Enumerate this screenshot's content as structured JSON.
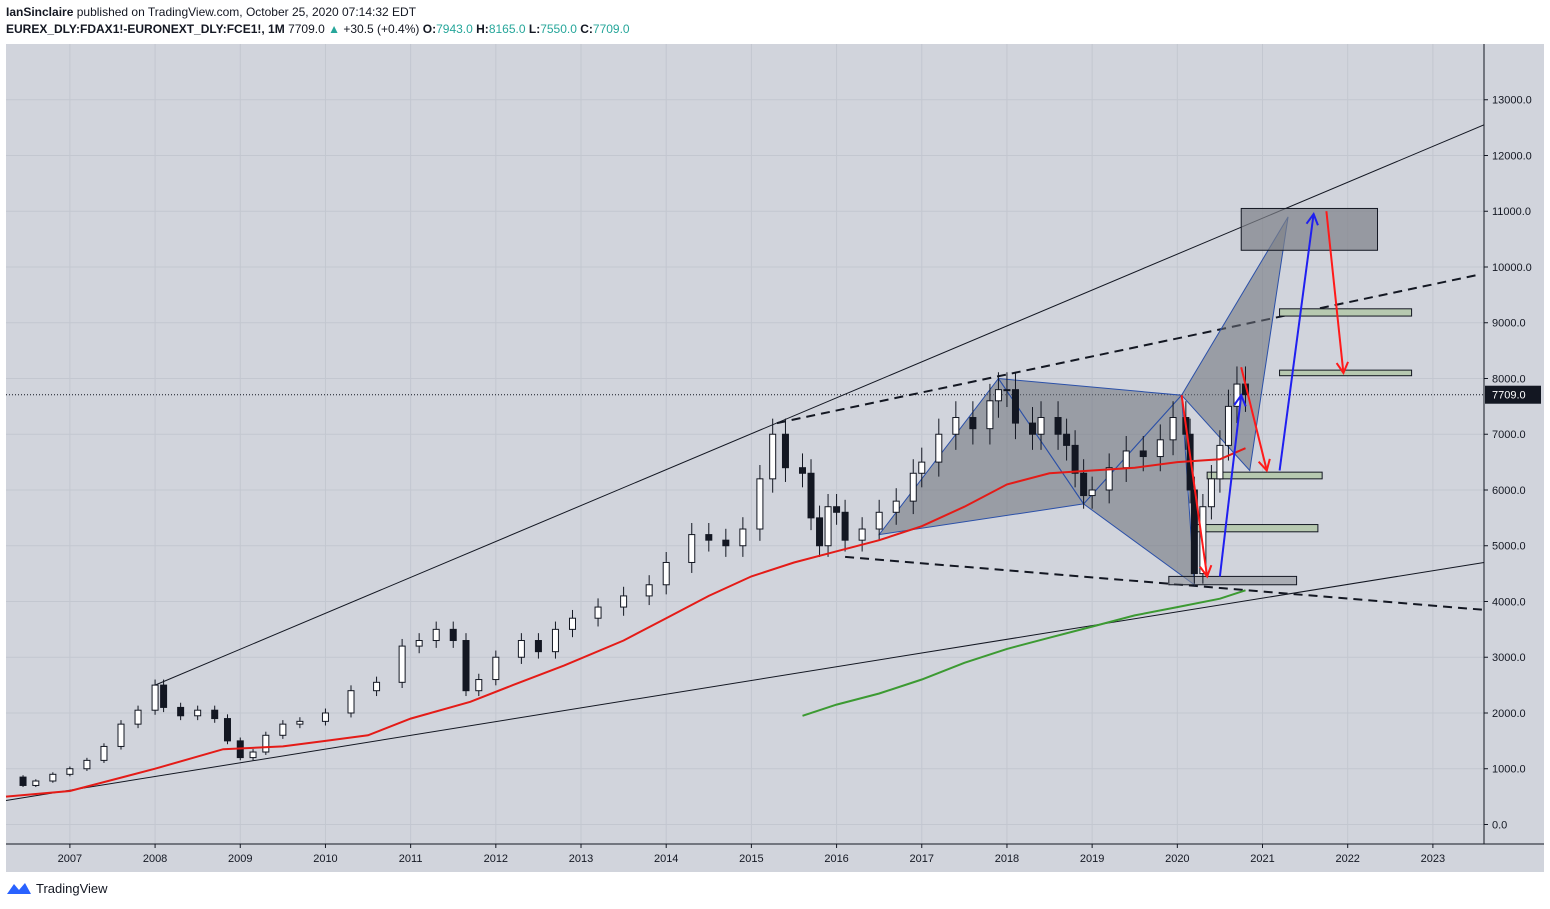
{
  "header": {
    "author": "IanSinclaire",
    "published_text": "published on TradingView.com, October 25, 2020 07:14:32 EDT",
    "symbol": "EUREX_DLY:FDAX1!-EURONEXT_DLY:FCE1!, 1M",
    "last": "7709.0",
    "change_arrow": "▲",
    "change": "+30.5 (+0.4%)",
    "o_label": "O:",
    "o_value": "7943.0",
    "h_label": "H:",
    "h_value": "8165.0",
    "l_label": "L:",
    "l_value": "7550.0",
    "c_label": "C:",
    "c_value": "7709.0"
  },
  "footer": {
    "brand": "TradingView",
    "icon": "tradingview-logo-icon"
  },
  "colors": {
    "background": "#d1d4dc",
    "up": "#ffffff",
    "down": "#131722",
    "ma_red": "#e41b17",
    "ma_green": "#3c9a32",
    "arrow_blue": "#1f1ff0",
    "arrow_red": "#ff1a1a",
    "pattern_fill": "#6b6f78",
    "zone_green": "#b7c9b0"
  },
  "chart_data": {
    "type": "candlestick",
    "interval": "1M",
    "ylim": [
      -350,
      14000
    ],
    "yticks": [
      0,
      1000,
      2000,
      3000,
      4000,
      5000,
      6000,
      7000,
      8000,
      9000,
      10000,
      11000,
      12000,
      13000
    ],
    "ytick_labels": [
      "0.0",
      "1000.0",
      "2000.0",
      "3000.0",
      "4000.0",
      "5000.0",
      "6000.0",
      "7000.0",
      "8000.0",
      "9000.0",
      "10000.0",
      "11000.0",
      "12000.0",
      "13000.0"
    ],
    "xlim": [
      2006.25,
      2023.6
    ],
    "xticks": [
      2007,
      2008,
      2009,
      2010,
      2011,
      2012,
      2013,
      2014,
      2015,
      2016,
      2017,
      2018,
      2019,
      2020,
      2021,
      2022,
      2023
    ],
    "xtick_labels": [
      "2007",
      "2008",
      "2009",
      "2010",
      "2011",
      "2012",
      "2013",
      "2014",
      "2015",
      "2016",
      "2017",
      "2018",
      "2019",
      "2020",
      "2021",
      "2022",
      "2023"
    ],
    "last_price": 7709.0,
    "last_price_label": "7709.0",
    "closes": [
      [
        2006.25,
        850
      ],
      [
        2006.45,
        700
      ],
      [
        2006.6,
        780
      ],
      [
        2006.8,
        900
      ],
      [
        2007.0,
        1000
      ],
      [
        2007.2,
        1150
      ],
      [
        2007.4,
        1400
      ],
      [
        2007.6,
        1800
      ],
      [
        2007.8,
        2050
      ],
      [
        2008.0,
        2500
      ],
      [
        2008.1,
        2100
      ],
      [
        2008.3,
        1950
      ],
      [
        2008.5,
        2050
      ],
      [
        2008.7,
        1900
      ],
      [
        2008.85,
        1500
      ],
      [
        2009.0,
        1200
      ],
      [
        2009.15,
        1300
      ],
      [
        2009.3,
        1600
      ],
      [
        2009.5,
        1800
      ],
      [
        2009.7,
        1850
      ],
      [
        2010.0,
        2000
      ],
      [
        2010.3,
        2400
      ],
      [
        2010.6,
        2550
      ],
      [
        2010.9,
        3200
      ],
      [
        2011.1,
        3300
      ],
      [
        2011.3,
        3500
      ],
      [
        2011.5,
        3300
      ],
      [
        2011.65,
        2400
      ],
      [
        2011.8,
        2600
      ],
      [
        2012.0,
        3000
      ],
      [
        2012.3,
        3300
      ],
      [
        2012.5,
        3100
      ],
      [
        2012.7,
        3500
      ],
      [
        2012.9,
        3700
      ],
      [
        2013.2,
        3900
      ],
      [
        2013.5,
        4100
      ],
      [
        2013.8,
        4300
      ],
      [
        2014.0,
        4700
      ],
      [
        2014.3,
        5200
      ],
      [
        2014.5,
        5100
      ],
      [
        2014.7,
        5000
      ],
      [
        2014.9,
        5300
      ],
      [
        2015.1,
        6200
      ],
      [
        2015.25,
        7000
      ],
      [
        2015.4,
        6400
      ],
      [
        2015.6,
        6300
      ],
      [
        2015.7,
        5500
      ],
      [
        2015.8,
        5000
      ],
      [
        2015.9,
        5700
      ],
      [
        2016.0,
        5600
      ],
      [
        2016.1,
        5100
      ],
      [
        2016.3,
        5300
      ],
      [
        2016.5,
        5600
      ],
      [
        2016.7,
        5800
      ],
      [
        2016.9,
        6300
      ],
      [
        2017.0,
        6500
      ],
      [
        2017.2,
        7000
      ],
      [
        2017.4,
        7300
      ],
      [
        2017.6,
        7100
      ],
      [
        2017.8,
        7600
      ],
      [
        2017.9,
        7800
      ],
      [
        2018.0,
        7800
      ],
      [
        2018.1,
        7200
      ],
      [
        2018.3,
        7000
      ],
      [
        2018.4,
        7300
      ],
      [
        2018.6,
        7000
      ],
      [
        2018.7,
        6800
      ],
      [
        2018.8,
        6300
      ],
      [
        2018.9,
        5900
      ],
      [
        2019.0,
        6000
      ],
      [
        2019.2,
        6400
      ],
      [
        2019.4,
        6700
      ],
      [
        2019.6,
        6600
      ],
      [
        2019.8,
        6900
      ],
      [
        2019.95,
        7300
      ],
      [
        2020.1,
        7000
      ],
      [
        2020.15,
        6000
      ],
      [
        2020.2,
        4500
      ],
      [
        2020.3,
        5700
      ],
      [
        2020.4,
        6200
      ],
      [
        2020.5,
        6800
      ],
      [
        2020.6,
        7500
      ],
      [
        2020.7,
        7900
      ],
      [
        2020.8,
        7709
      ]
    ],
    "series": [
      {
        "type": "line",
        "role": "moving-average",
        "color": "#e41b17",
        "points": [
          [
            2006.25,
            500
          ],
          [
            2007.0,
            600
          ],
          [
            2008.0,
            1000
          ],
          [
            2008.8,
            1350
          ],
          [
            2009.5,
            1400
          ],
          [
            2010.0,
            1500
          ],
          [
            2010.5,
            1600
          ],
          [
            2011.0,
            1900
          ],
          [
            2011.7,
            2200
          ],
          [
            2012.2,
            2500
          ],
          [
            2012.8,
            2850
          ],
          [
            2013.5,
            3300
          ],
          [
            2014.0,
            3700
          ],
          [
            2014.5,
            4100
          ],
          [
            2015.0,
            4450
          ],
          [
            2015.5,
            4700
          ],
          [
            2016.0,
            4900
          ],
          [
            2016.5,
            5100
          ],
          [
            2017.0,
            5350
          ],
          [
            2017.5,
            5700
          ],
          [
            2018.0,
            6100
          ],
          [
            2018.5,
            6300
          ],
          [
            2019.0,
            6350
          ],
          [
            2019.5,
            6400
          ],
          [
            2020.0,
            6500
          ],
          [
            2020.5,
            6550
          ],
          [
            2020.8,
            6750
          ]
        ]
      },
      {
        "type": "line",
        "role": "moving-average",
        "color": "#3c9a32",
        "points": [
          [
            2015.6,
            1950
          ],
          [
            2016.0,
            2150
          ],
          [
            2016.5,
            2350
          ],
          [
            2017.0,
            2600
          ],
          [
            2017.5,
            2900
          ],
          [
            2018.0,
            3150
          ],
          [
            2018.5,
            3350
          ],
          [
            2019.0,
            3550
          ],
          [
            2019.5,
            3750
          ],
          [
            2020.0,
            3900
          ],
          [
            2020.5,
            4050
          ],
          [
            2020.8,
            4200
          ]
        ]
      }
    ]
  }
}
